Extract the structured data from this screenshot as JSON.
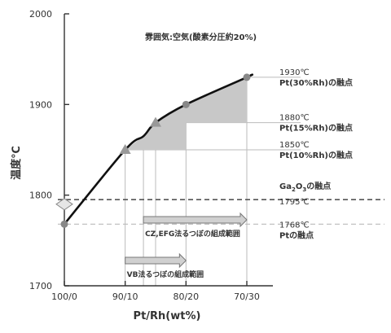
{
  "chart_data": {
    "type": "line",
    "xlabel": "Pt/Rh(wt%)",
    "ylabel": "温度℃",
    "x_categories": [
      "100/0",
      "90/10",
      "80/20",
      "70/30"
    ],
    "x_range_rh_pct": [
      0,
      30
    ],
    "ylim": [
      1700,
      2000
    ],
    "y_ticks": [
      "1700",
      "1800",
      "1900",
      "2000"
    ],
    "atmosphere_note": "雰囲気:空気(酸素分圧約20%)",
    "curve_points": [
      {
        "rh": 0,
        "t": 1768
      },
      {
        "rh": 10,
        "t": 1850
      },
      {
        "rh": 13,
        "t": 1865
      },
      {
        "rh": 15,
        "t": 1880
      },
      {
        "rh": 20,
        "t": 1900
      },
      {
        "rh": 30,
        "t": 1930
      }
    ],
    "curve_end": {
      "rh": 30.5,
      "t": 1932
    },
    "markers": [
      {
        "rh": 0,
        "t": 1768,
        "shape": "circle"
      },
      {
        "rh": 10,
        "t": 1850,
        "shape": "triangle"
      },
      {
        "rh": 15,
        "t": 1880,
        "shape": "triangle"
      },
      {
        "rh": 20,
        "t": 1900,
        "shape": "circle"
      },
      {
        "rh": 30,
        "t": 1930,
        "shape": "circle"
      },
      {
        "rh": 0,
        "t": 1790,
        "shape": "diamond"
      }
    ],
    "reference_lines": [
      {
        "t": 1795,
        "style": "dashed-dark"
      },
      {
        "t": 1768,
        "style": "dashed-light"
      }
    ],
    "annotations": [
      {
        "temp": "1930℃",
        "label": "Pt(30%Rh)の融点",
        "t": 1930
      },
      {
        "temp": "1880℃",
        "label": "Pt(15%Rh)の融点",
        "t": 1880
      },
      {
        "temp": "1850℃",
        "label": "Pt(10%Rh)の融点",
        "t": 1850
      }
    ],
    "ga2o3": {
      "prefix": "Ga",
      "sub1": "2",
      "mid": "O",
      "sub2": "3",
      "suffix": "の融点",
      "temp": "1795℃"
    },
    "pt_melting": {
      "temp": "1768℃",
      "label": "Ptの融点"
    },
    "ranges": [
      {
        "label": "CZ,EFG法るつぼの組成範囲",
        "rh_start": 13,
        "rh_end": 30
      },
      {
        "label": "VB法るつぼの組成範囲",
        "rh_start": 10,
        "rh_end": 20
      }
    ],
    "shaded_region": {
      "rh_from": 10,
      "rh_to": 30,
      "color": "#c8c8c8"
    },
    "colors": {
      "curve": "#111111",
      "grid": "#bbbbbb",
      "marker": "#888888",
      "arrow_fill": "#d0d0d0",
      "arrow_stroke": "#777777"
    }
  }
}
